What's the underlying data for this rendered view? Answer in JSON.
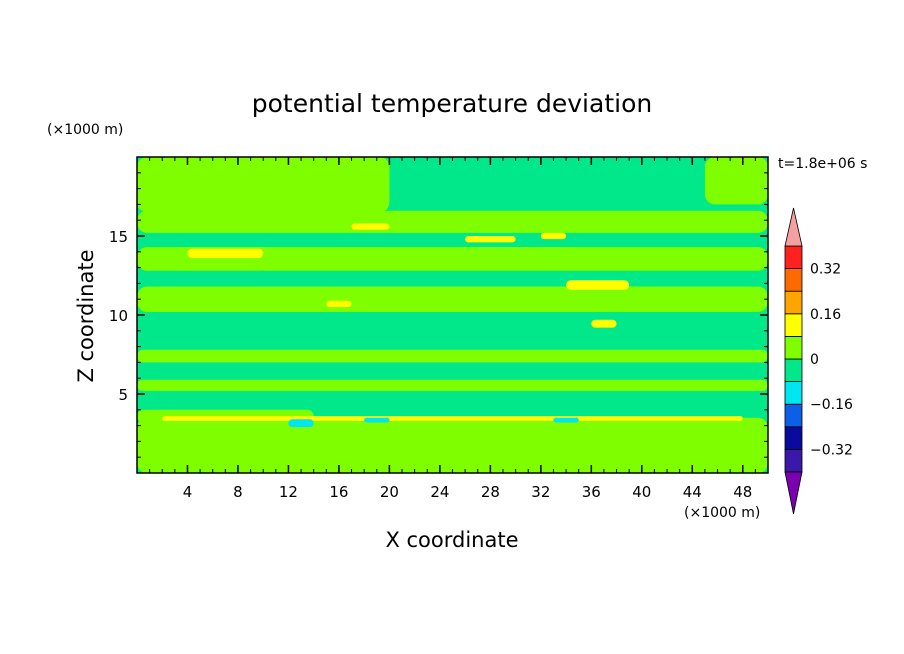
{
  "chart_data": {
    "type": "heatmap",
    "title": "potential temperature deviation",
    "xlabel": "X coordinate",
    "ylabel": "Z coordinate",
    "x_unit": "(×1000 m)",
    "y_unit": "(×1000 m)",
    "time_label": "t=1.8e+06 s",
    "xlim": [
      0,
      50
    ],
    "ylim": [
      0,
      20
    ],
    "xticks": [
      4,
      8,
      12,
      16,
      20,
      24,
      28,
      32,
      36,
      40,
      44,
      48
    ],
    "yticks": [
      5,
      10,
      15
    ],
    "colorbar": {
      "levels": [
        {
          "lo": null,
          "hi": -0.4,
          "color": "#7a00b0"
        },
        {
          "lo": -0.4,
          "hi": -0.32,
          "color": "#3a18a8"
        },
        {
          "lo": -0.32,
          "hi": -0.24,
          "color": "#0a0a9e"
        },
        {
          "lo": -0.24,
          "hi": -0.16,
          "color": "#0d5fe8"
        },
        {
          "lo": -0.16,
          "hi": -0.08,
          "color": "#00e6f0"
        },
        {
          "lo": -0.08,
          "hi": 0,
          "color": "#00e88a"
        },
        {
          "lo": 0,
          "hi": 0.08,
          "color": "#7ffe00"
        },
        {
          "lo": 0.08,
          "hi": 0.16,
          "color": "#ffff00"
        },
        {
          "lo": 0.16,
          "hi": 0.24,
          "color": "#ffa500"
        },
        {
          "lo": 0.24,
          "hi": 0.32,
          "color": "#ff6a00"
        },
        {
          "lo": 0.32,
          "hi": 0.4,
          "color": "#ff2020"
        },
        {
          "lo": 0.4,
          "hi": null,
          "color": "#f5a0a0"
        }
      ],
      "tick_labels": [
        "0.32",
        "0.16",
        "0",
        "−0.16",
        "−0.32"
      ],
      "tick_values": [
        0.32,
        0.16,
        0,
        -0.16,
        -0.32
      ]
    },
    "background_color": "#00e88a",
    "regions": [
      {
        "value": 0.04,
        "x": [
          0,
          50
        ],
        "y": [
          0,
          3.5
        ]
      },
      {
        "value": 0.04,
        "x": [
          0,
          14
        ],
        "y": [
          3.2,
          4.0
        ]
      },
      {
        "value": 0.04,
        "x": [
          0,
          50
        ],
        "y": [
          5.2,
          5.9
        ]
      },
      {
        "value": 0.04,
        "x": [
          0,
          50
        ],
        "y": [
          7.0,
          7.8
        ]
      },
      {
        "value": 0.04,
        "x": [
          0,
          50
        ],
        "y": [
          10.2,
          11.8
        ]
      },
      {
        "value": 0.04,
        "x": [
          0,
          50
        ],
        "y": [
          12.8,
          14.3
        ]
      },
      {
        "value": 0.04,
        "x": [
          0,
          50
        ],
        "y": [
          15.2,
          16.6
        ]
      },
      {
        "value": 0.04,
        "x": [
          0,
          20
        ],
        "y": [
          16.5,
          20
        ]
      },
      {
        "value": 0.04,
        "x": [
          45,
          50
        ],
        "y": [
          17,
          20
        ]
      },
      {
        "value": 0.12,
        "x": [
          4,
          10
        ],
        "y": [
          13.6,
          14.2
        ]
      },
      {
        "value": 0.12,
        "x": [
          17,
          20
        ],
        "y": [
          15.4,
          15.8
        ]
      },
      {
        "value": 0.12,
        "x": [
          26,
          30
        ],
        "y": [
          14.6,
          15.0
        ]
      },
      {
        "value": 0.12,
        "x": [
          32,
          34
        ],
        "y": [
          14.8,
          15.2
        ]
      },
      {
        "value": 0.12,
        "x": [
          34,
          39
        ],
        "y": [
          11.6,
          12.2
        ]
      },
      {
        "value": 0.12,
        "x": [
          36,
          38
        ],
        "y": [
          9.2,
          9.7
        ]
      },
      {
        "value": 0.12,
        "x": [
          15,
          17
        ],
        "y": [
          10.5,
          10.9
        ]
      },
      {
        "value": 0.12,
        "x": [
          2,
          48
        ],
        "y": [
          3.3,
          3.6
        ]
      },
      {
        "value": -0.1,
        "x": [
          12,
          14
        ],
        "y": [
          2.9,
          3.4
        ]
      },
      {
        "value": -0.1,
        "x": [
          18,
          20
        ],
        "y": [
          3.2,
          3.5
        ]
      },
      {
        "value": -0.1,
        "x": [
          33,
          35
        ],
        "y": [
          3.2,
          3.5
        ]
      }
    ]
  }
}
